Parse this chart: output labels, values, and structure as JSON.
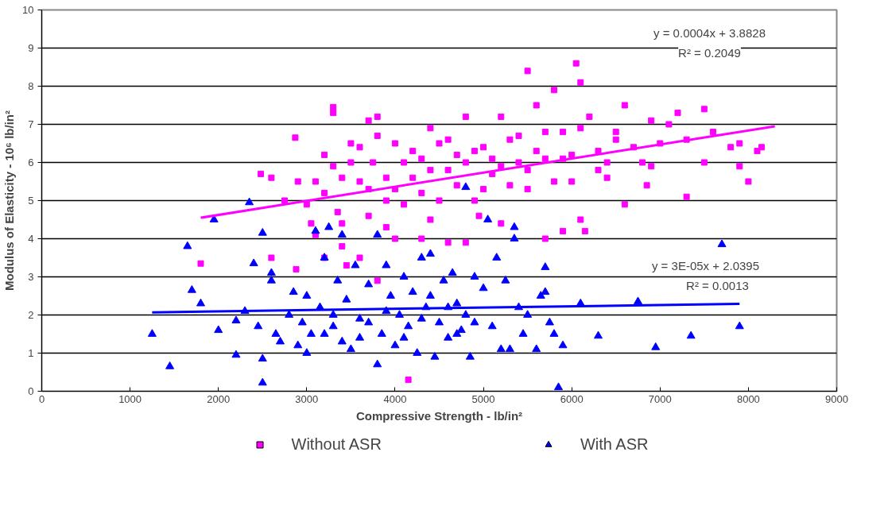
{
  "chart_data": {
    "type": "scatter",
    "xlabel": "Compressive Strength - lb/in²",
    "ylabel": "Modulus of Elasticity - 10⁶ lb/in²",
    "xlim": [
      0,
      9000
    ],
    "xticks": [
      0,
      1000,
      2000,
      3000,
      4000,
      5000,
      6000,
      7000,
      8000,
      9000
    ],
    "ylim": [
      0,
      10
    ],
    "yticks": [
      0,
      1,
      2,
      3,
      4,
      5,
      6,
      7,
      8,
      9,
      10
    ],
    "grid": "y",
    "legend": "bottom",
    "series": [
      {
        "name": "Without ASR",
        "color": "#ff00ff",
        "marker": "square",
        "x": [
          1800,
          2480,
          2600,
          2870,
          2900,
          2880,
          2750,
          3100,
          3000,
          3300,
          3300,
          3200,
          3300,
          3350,
          3400,
          3500,
          3600,
          3700,
          3800,
          3750,
          3700,
          3800,
          3900,
          4000,
          4100,
          4150,
          4000,
          4200,
          4300,
          4400,
          4500,
          4400,
          4600,
          4700,
          4800,
          4800,
          4900,
          5000,
          5100,
          5200,
          5300,
          5400,
          5500,
          5600,
          5700,
          5700,
          5800,
          5900,
          6050,
          6100,
          6000,
          6100,
          6150,
          6200,
          6300,
          6400,
          6500,
          6600,
          6600,
          6700,
          6800,
          6900,
          7000,
          7100,
          7200,
          7300,
          7300,
          7500,
          7500,
          7800,
          7900,
          8000,
          8100,
          8150,
          7900,
          7600,
          6850,
          6400,
          5900,
          5500,
          5200,
          4950,
          4600,
          4300,
          3900,
          3600,
          3450,
          3200,
          3050,
          3100,
          3200,
          3400,
          3500,
          3600,
          3800,
          3900,
          4000,
          4100,
          4200,
          4300,
          4400,
          4500,
          4600,
          4700,
          4800,
          4900,
          5000,
          5100,
          5200,
          5300,
          5400,
          5500,
          5600,
          5700,
          5800,
          5900,
          6000,
          6100,
          6300,
          6500,
          6900,
          3400,
          2600,
          3700
        ],
        "values": [
          3.35,
          5.7,
          5.6,
          6.65,
          5.5,
          3.2,
          5.0,
          4.1,
          4.9,
          7.45,
          7.3,
          6.2,
          5.9,
          4.7,
          3.8,
          6.5,
          5.5,
          7.1,
          7.2,
          6.0,
          4.6,
          2.9,
          5.0,
          6.5,
          6.0,
          0.3,
          4.0,
          6.3,
          5.2,
          6.9,
          6.5,
          4.5,
          5.8,
          6.2,
          7.2,
          3.9,
          5.0,
          6.4,
          5.7,
          7.2,
          6.6,
          6.0,
          8.4,
          7.5,
          6.1,
          4.0,
          7.9,
          6.8,
          8.6,
          8.1,
          5.5,
          4.5,
          4.2,
          7.2,
          6.3,
          6.0,
          6.6,
          4.9,
          7.5,
          6.4,
          6.0,
          5.9,
          6.5,
          7.0,
          7.3,
          6.6,
          5.1,
          7.4,
          6.0,
          6.4,
          6.5,
          5.5,
          6.3,
          6.4,
          5.9,
          6.8,
          5.4,
          5.6,
          4.2,
          5.3,
          4.4,
          4.6,
          3.9,
          4.0,
          4.3,
          3.5,
          3.3,
          3.5,
          4.4,
          5.5,
          5.2,
          5.6,
          6.0,
          6.4,
          6.7,
          5.6,
          5.3,
          4.9,
          5.6,
          6.1,
          5.8,
          5.0,
          6.6,
          5.4,
          6.0,
          6.3,
          5.3,
          6.1,
          5.9,
          5.4,
          6.7,
          5.8,
          6.3,
          6.8,
          5.5,
          6.1,
          6.2,
          6.9,
          5.8,
          6.8,
          7.1,
          4.4,
          3.5,
          5.3
        ]
      },
      {
        "name": "With ASR",
        "color": "#0000ff",
        "marker": "triangle",
        "x": [
          1250,
          1450,
          1650,
          1700,
          1800,
          1950,
          2000,
          2200,
          2200,
          2300,
          2350,
          2400,
          2450,
          2500,
          2500,
          2500,
          2600,
          2600,
          2650,
          2700,
          2800,
          2850,
          2900,
          2950,
          3000,
          3050,
          3100,
          3150,
          3200,
          3250,
          3300,
          3350,
          3400,
          3400,
          3450,
          3500,
          3550,
          3600,
          3700,
          3800,
          3800,
          3850,
          3900,
          3950,
          4000,
          4050,
          4100,
          4150,
          4200,
          4250,
          4300,
          4350,
          4400,
          4450,
          4500,
          4550,
          4600,
          4650,
          4700,
          4750,
          4800,
          4800,
          4850,
          4900,
          5000,
          5050,
          5100,
          5150,
          5200,
          5250,
          5300,
          5350,
          5350,
          5400,
          5450,
          5500,
          5600,
          5650,
          5700,
          5700,
          5750,
          5800,
          5850,
          5900,
          6100,
          6300,
          6750,
          6950,
          7350,
          7700,
          7900,
          3000,
          3200,
          3300,
          3600,
          3700,
          3900,
          4100,
          4300,
          4400,
          4600,
          4700,
          4900
        ],
        "values": [
          1.5,
          0.65,
          3.8,
          2.65,
          2.3,
          4.5,
          1.6,
          0.95,
          1.85,
          2.1,
          4.95,
          3.35,
          1.7,
          4.15,
          0.85,
          0.22,
          2.9,
          3.1,
          1.5,
          1.3,
          2.0,
          2.6,
          1.2,
          1.8,
          1.0,
          1.5,
          4.2,
          2.2,
          3.5,
          4.3,
          1.7,
          2.9,
          4.1,
          1.3,
          2.4,
          1.1,
          3.3,
          1.9,
          2.8,
          4.1,
          0.7,
          1.5,
          3.3,
          2.5,
          1.2,
          2.0,
          3.0,
          1.7,
          2.6,
          1.0,
          3.5,
          2.2,
          3.6,
          0.9,
          1.8,
          2.9,
          1.4,
          3.1,
          2.3,
          1.6,
          5.35,
          2.0,
          0.9,
          3.0,
          2.7,
          4.5,
          1.7,
          3.5,
          1.1,
          2.9,
          1.1,
          4.3,
          4.0,
          2.2,
          1.5,
          2.0,
          1.1,
          2.5,
          3.25,
          2.6,
          1.8,
          1.5,
          0.1,
          1.2,
          2.3,
          1.45,
          2.35,
          1.15,
          1.45,
          3.85,
          1.7,
          2.5,
          1.5,
          2.0,
          1.4,
          1.8,
          2.1,
          1.4,
          1.9,
          2.5,
          2.2,
          1.5,
          1.8
        ]
      },
      {
        "type": "line",
        "color": "#ff00ff",
        "marker": "none",
        "x": [
          1800,
          8300
        ],
        "values": [
          4.55,
          6.95
        ]
      },
      {
        "type": "line",
        "color": "#0000ff",
        "marker": "none",
        "x": [
          1250,
          7900
        ],
        "values": [
          2.07,
          2.29
        ]
      }
    ],
    "annotations": [
      "y = 0.0004x + 3.8828",
      "R² = 0.2049",
      "y = 3E-05x + 2.0395",
      "R² = 0.0013"
    ]
  }
}
